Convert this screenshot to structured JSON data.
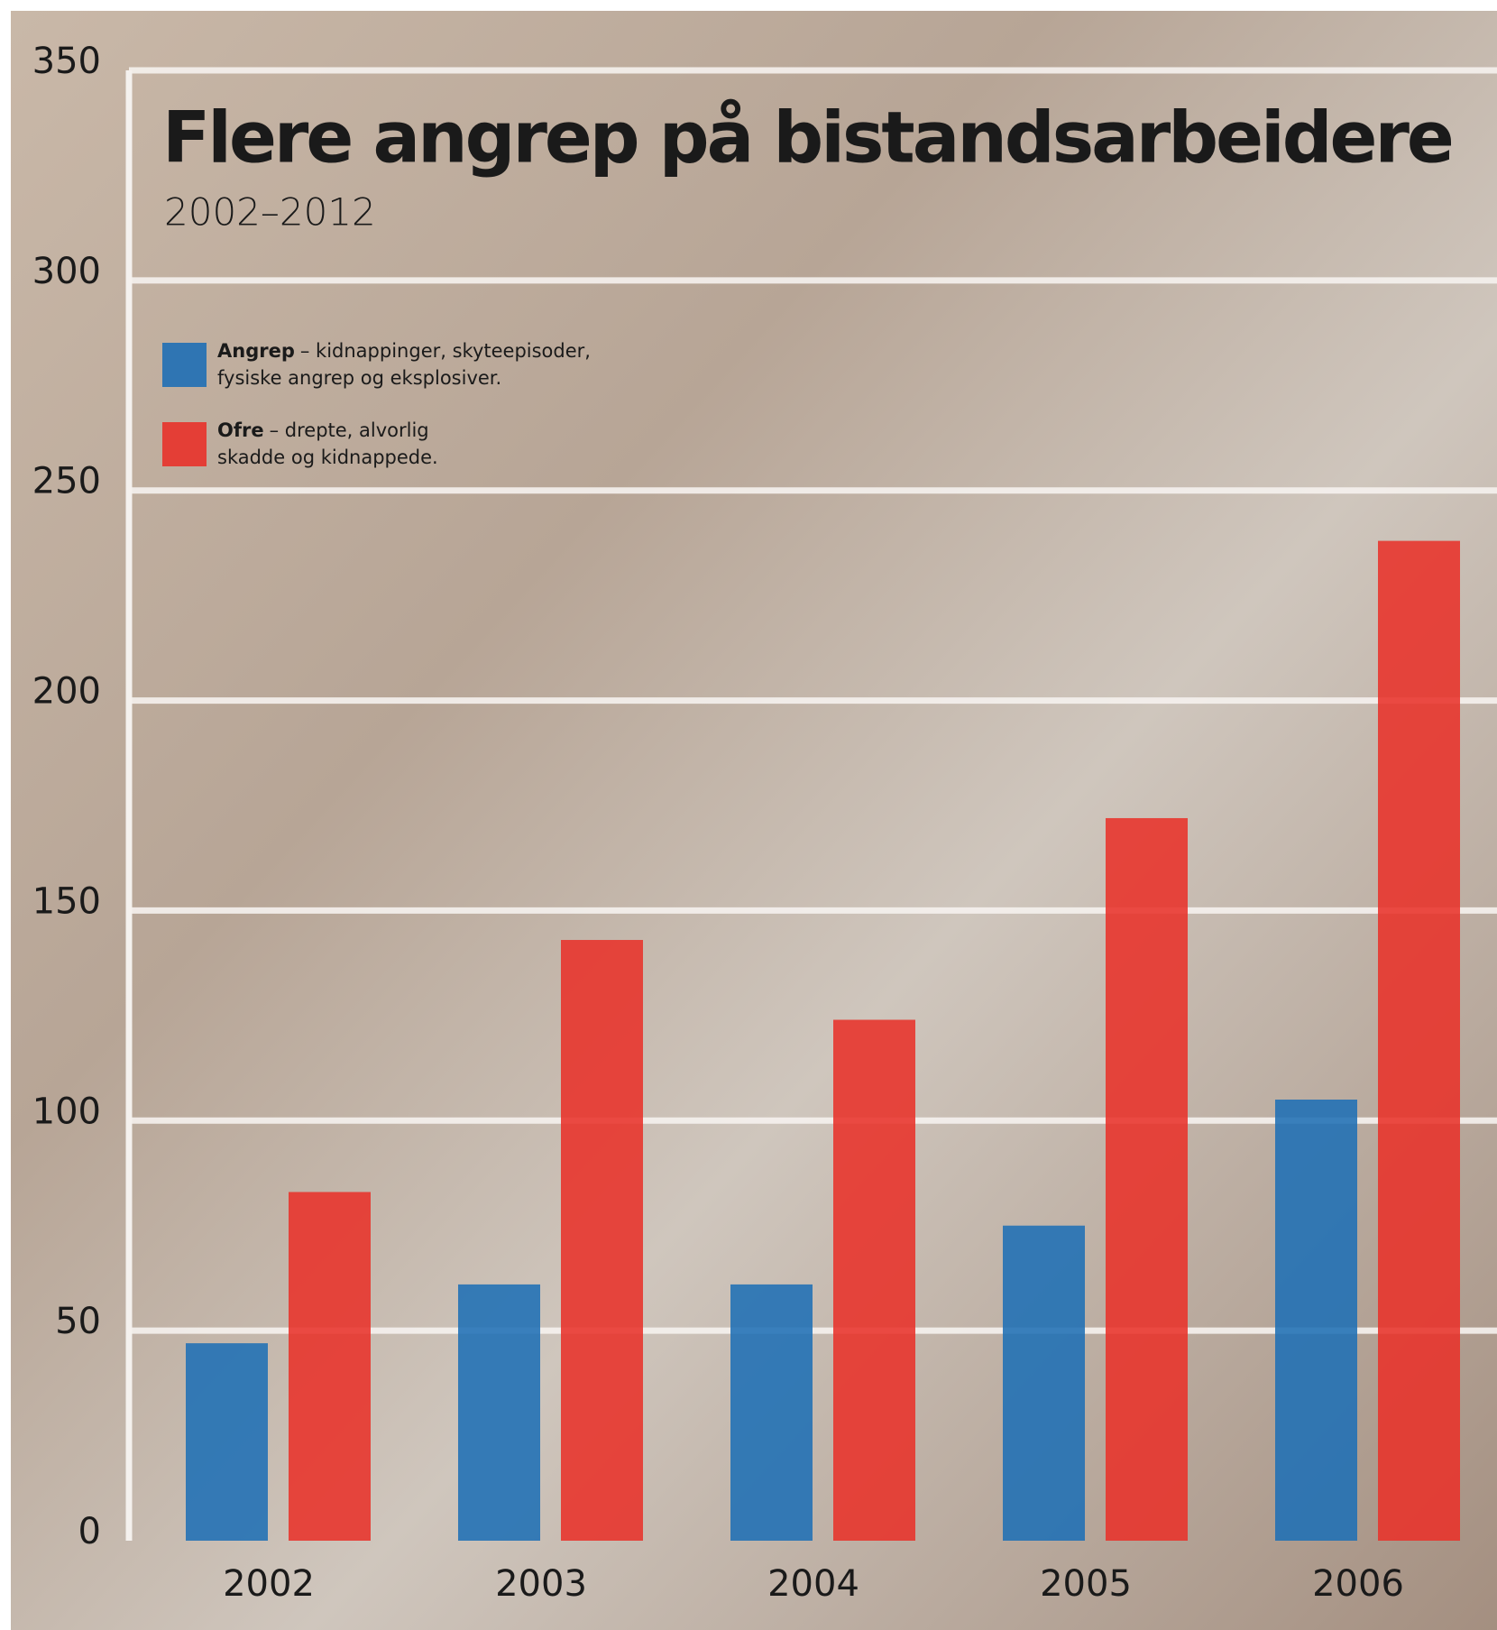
{
  "chart_data": {
    "type": "bar",
    "title": "Flere angrep på bistandsarbeidere",
    "subtitle": "2002–2012",
    "categories": [
      "2002",
      "2003",
      "2004",
      "2005",
      "2006"
    ],
    "series": [
      {
        "name": "Angrep",
        "description": [
          "– kidnappinger, skyteepisoder,",
          "fysiske angrep og eksplosiver."
        ],
        "color": "#1f6fb5",
        "values": [
          47,
          61,
          61,
          75,
          105
        ]
      },
      {
        "name": "Ofre",
        "description": [
          "– drepte, alvorlig",
          "skadde og kidnappede."
        ],
        "color": "#e8322a",
        "values": [
          83,
          143,
          124,
          172,
          238
        ]
      }
    ],
    "ylim": [
      0,
      350
    ],
    "yticks": [
      0,
      50,
      100,
      150,
      200,
      250,
      300,
      350
    ],
    "grid": true
  }
}
